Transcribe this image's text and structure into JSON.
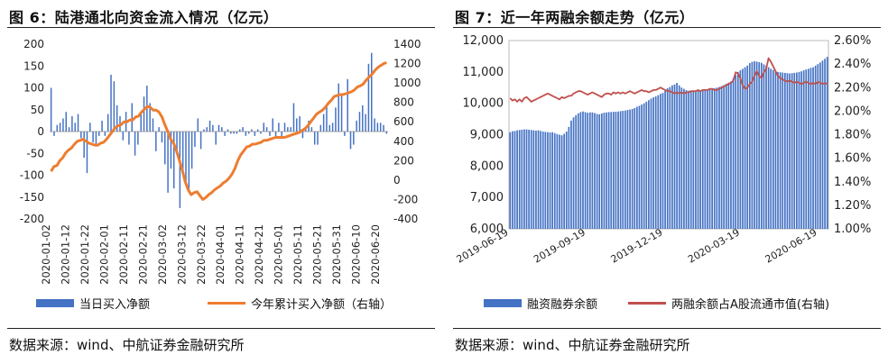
{
  "left": {
    "title": "图 6：陆港通北向资金流入情况（亿元）",
    "source": "数据来源：wind、中航证券金融研究所",
    "chart_data": {
      "type": "bar+line",
      "x_tick_labels": [
        "2020-01-02",
        "2020-01-12",
        "2020-01-22",
        "2020-02-01",
        "2020-02-11",
        "2020-02-21",
        "2020-03-02",
        "2020-03-12",
        "2020-03-22",
        "2020-04-01",
        "2020-04-11",
        "2020-04-21",
        "2020-05-01",
        "2020-05-11",
        "2020-05-21",
        "2020-05-31",
        "2020-06-10",
        "2020-06-20"
      ],
      "y_left": {
        "min": -200,
        "max": 200,
        "ticks": [
          -200,
          -150,
          -100,
          -50,
          0,
          50,
          100,
          150,
          200
        ]
      },
      "y_right": {
        "min": -400,
        "max": 1400,
        "ticks": [
          -400,
          -200,
          0,
          200,
          400,
          600,
          800,
          1000,
          1200,
          1400
        ]
      },
      "series": [
        {
          "name": "当日买入净额",
          "axis": "left",
          "color": "#4472c4",
          "values": [
            100,
            -10,
            15,
            20,
            30,
            45,
            10,
            35,
            20,
            40,
            -15,
            -60,
            -95,
            20,
            -25,
            -30,
            -10,
            25,
            -10,
            40,
            130,
            115,
            60,
            35,
            -20,
            45,
            -30,
            65,
            -55,
            -30,
            40,
            80,
            105,
            65,
            30,
            -45,
            10,
            -25,
            -75,
            -140,
            -85,
            -130,
            -50,
            -175,
            -95,
            -120,
            -140,
            -85,
            -35,
            30,
            -40,
            5,
            10,
            25,
            15,
            -30,
            15,
            10,
            -10,
            5,
            -5,
            -5,
            -5,
            5,
            10,
            -10,
            -5,
            5,
            -10,
            5,
            -5,
            20,
            10,
            -10,
            30,
            -15,
            20,
            -15,
            20,
            10,
            10,
            65,
            30,
            35,
            -15,
            5,
            25,
            10,
            -30,
            -30,
            15,
            40,
            60,
            15,
            20,
            55,
            110,
            85,
            -10,
            120,
            -40,
            -30,
            25,
            45,
            60,
            40,
            155,
            180,
            30,
            20,
            20,
            15,
            -5
          ]
        },
        {
          "name": "今年累计买入净额（右轴）",
          "axis": "right",
          "color": "#ed7d31",
          "values": [
            90,
            140,
            150,
            200,
            230,
            280,
            310,
            330,
            370,
            400,
            410,
            420,
            400,
            380,
            370,
            360,
            360,
            380,
            390,
            420,
            460,
            500,
            540,
            560,
            570,
            600,
            600,
            620,
            620,
            650,
            660,
            700,
            730,
            760,
            750,
            720,
            720,
            700,
            650,
            570,
            500,
            420,
            380,
            300,
            200,
            100,
            -20,
            -100,
            -150,
            -130,
            -120,
            -160,
            -200,
            -180,
            -150,
            -130,
            -100,
            -80,
            -60,
            -30,
            -10,
            20,
            60,
            120,
            200,
            260,
            300,
            340,
            350,
            370,
            370,
            380,
            390,
            410,
            410,
            420,
            430,
            440,
            440,
            440,
            440,
            450,
            460,
            470,
            480,
            490,
            510,
            530,
            560,
            600,
            640,
            680,
            700,
            720,
            750,
            790,
            820,
            860,
            870,
            880,
            880,
            890,
            900,
            910,
            930,
            960,
            970,
            990,
            1030,
            1060,
            1090,
            1130,
            1160,
            1180,
            1200,
            1210
          ]
        }
      ]
    },
    "legend": [
      {
        "label": "当日买入净额",
        "kind": "bar",
        "color": "#4472c4"
      },
      {
        "label": "今年累计买入净额（右轴）",
        "kind": "line",
        "color": "#ed7d31"
      }
    ]
  },
  "right": {
    "title": "图 7：近一年两融余额走势（亿元）",
    "source": "数据来源：wind、中航证券金融研究所",
    "chart_data": {
      "type": "bar+line",
      "x_tick_labels": [
        "2019-06-19",
        "2019-09-19",
        "2019-12-19",
        "2020-03-19",
        "2020-06-19"
      ],
      "y_left": {
        "min": 6000,
        "max": 12000,
        "ticks": [
          6000,
          7000,
          8000,
          9000,
          10000,
          11000,
          12000
        ],
        "tick_labels": [
          "6,000",
          "7,000",
          "8,000",
          "9,000",
          "10,000",
          "11,000",
          "12,000"
        ]
      },
      "y_right": {
        "min": 1.0,
        "max": 2.6,
        "ticks": [
          1.0,
          1.2,
          1.4,
          1.6,
          1.8,
          2.0,
          2.2,
          2.4,
          2.6
        ],
        "tick_labels": [
          "1.00%",
          "1.20%",
          "1.40%",
          "1.60%",
          "1.80%",
          "2.00%",
          "2.20%",
          "2.40%",
          "2.60%"
        ]
      },
      "series": [
        {
          "name": "融资融券余额",
          "axis": "left",
          "color": "#4472c4",
          "values": [
            9080,
            9110,
            9120,
            9140,
            9150,
            9160,
            9170,
            9170,
            9160,
            9150,
            9140,
            9130,
            9140,
            9120,
            9100,
            9090,
            9080,
            9070,
            9080,
            9050,
            9020,
            9000,
            8980,
            9030,
            9100,
            9250,
            9450,
            9550,
            9620,
            9680,
            9720,
            9740,
            9720,
            9700,
            9710,
            9710,
            9690,
            9660,
            9650,
            9680,
            9700,
            9710,
            9720,
            9720,
            9730,
            9730,
            9740,
            9750,
            9760,
            9770,
            9790,
            9800,
            9820,
            9850,
            9890,
            9920,
            9960,
            10000,
            10050,
            10100,
            10150,
            10190,
            10220,
            10260,
            10300,
            10330,
            10400,
            10480,
            10520,
            10570,
            10600,
            10650,
            10570,
            10500,
            10460,
            10420,
            10400,
            10390,
            10380,
            10390,
            10400,
            10410,
            10420,
            10430,
            10440,
            10450,
            10460,
            10480,
            10500,
            10520,
            10550,
            10580,
            10620,
            10660,
            10700,
            10800,
            10900,
            11000,
            11050,
            11100,
            11150,
            11200,
            11280,
            11320,
            11340,
            11330,
            11310,
            11290,
            11240,
            11200,
            11150,
            11100,
            11060,
            11030,
            11000,
            10990,
            10980,
            10970,
            10960,
            10950,
            10960,
            10970,
            10980,
            11000,
            11020,
            11050,
            11080,
            11100,
            11130,
            11150,
            11200,
            11250,
            11300,
            11360,
            11420,
            11480
          ]
        },
        {
          "name": "两融余额占A股流通市值（右轴）",
          "axis": "right",
          "color": "#c0504d",
          "values": [
            2.11,
            2.09,
            2.1,
            2.08,
            2.1,
            2.08,
            2.11,
            2.12,
            2.1,
            2.08,
            2.09,
            2.1,
            2.11,
            2.12,
            2.13,
            2.14,
            2.15,
            2.14,
            2.13,
            2.12,
            2.11,
            2.1,
            2.12,
            2.11,
            2.12,
            2.13,
            2.13,
            2.15,
            2.16,
            2.17,
            2.17,
            2.16,
            2.15,
            2.14,
            2.15,
            2.16,
            2.15,
            2.14,
            2.13,
            2.12,
            2.14,
            2.15,
            2.15,
            2.14,
            2.16,
            2.15,
            2.16,
            2.15,
            2.16,
            2.15,
            2.16,
            2.17,
            2.16,
            2.15,
            2.16,
            2.17,
            2.18,
            2.17,
            2.17,
            2.16,
            2.17,
            2.18,
            2.18,
            2.19,
            2.2,
            2.19,
            2.18,
            2.17,
            2.17,
            2.16,
            2.15,
            2.16,
            2.15,
            2.16,
            2.15,
            2.16,
            2.16,
            2.17,
            2.17,
            2.17,
            2.18,
            2.17,
            2.18,
            2.18,
            2.18,
            2.19,
            2.19,
            2.18,
            2.18,
            2.19,
            2.2,
            2.21,
            2.22,
            2.23,
            2.24,
            2.26,
            2.33,
            2.32,
            2.28,
            2.22,
            2.19,
            2.2,
            2.23,
            2.25,
            2.3,
            2.34,
            2.3,
            2.28,
            2.33,
            2.36,
            2.45,
            2.42,
            2.38,
            2.34,
            2.3,
            2.28,
            2.27,
            2.26,
            2.25,
            2.26,
            2.25,
            2.24,
            2.25,
            2.24,
            2.23,
            2.24,
            2.25,
            2.24,
            2.23,
            2.24,
            2.23,
            2.25,
            2.24,
            2.23,
            2.24,
            2.23
          ]
        }
      ]
    },
    "legend": [
      {
        "label": "融资融券余额",
        "kind": "bar",
        "color": "#4472c4"
      },
      {
        "label": "两融余额占A股流通市值(右轴)",
        "kind": "line",
        "color": "#c0504d"
      }
    ]
  }
}
